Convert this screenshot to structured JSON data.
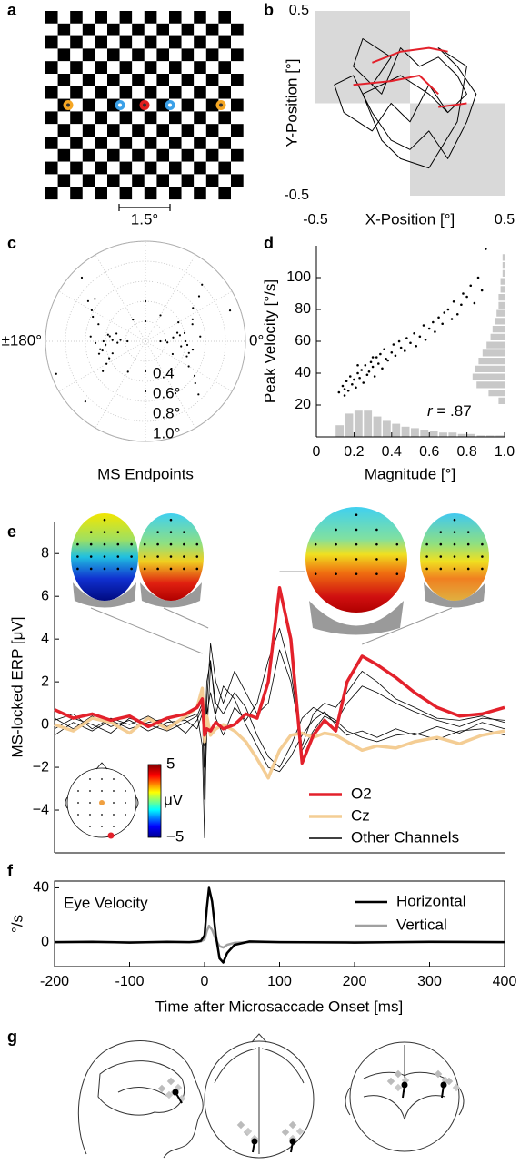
{
  "panel_a": {
    "label": "a",
    "scale_label": "1.5°"
  },
  "chart_data": [
    {
      "type": "line",
      "label": "b",
      "xlabel": "X-Position [°]",
      "ylabel": "Y-Position [°]",
      "xlim": [
        -0.5,
        0.5
      ],
      "ylim": [
        -0.5,
        0.5
      ],
      "xticks": [
        -0.5,
        0.5
      ],
      "yticks": [
        -0.5,
        0.5
      ],
      "frame": "none",
      "shaded_regions": [
        {
          "x": [
            -0.5,
            0
          ],
          "y": [
            0,
            0.5
          ]
        },
        {
          "x": [
            0,
            0.5
          ],
          "y": [
            -0.5,
            0
          ]
        }
      ],
      "shade_color": "#d9d9d9",
      "series": [
        {
          "color": "#000000",
          "x": [
            -0.2,
            -0.1,
            -0.25,
            -0.3,
            -0.15,
            -0.05,
            0.05,
            0.15,
            0.25,
            0.3,
            0.2,
            0.1,
            0.0,
            -0.1,
            -0.2,
            -0.35,
            -0.4,
            -0.3,
            -0.2,
            -0.1,
            0.0,
            0.1,
            0.2,
            0.3,
            0.35,
            0.25,
            0.15,
            0.3,
            0.25,
            0.1,
            -0.05,
            -0.15,
            -0.25,
            -0.05,
            0.1,
            0.2
          ],
          "values": [
            0.1,
            0.25,
            0.35,
            0.2,
            0.05,
            0.3,
            0.2,
            0.25,
            0.15,
            0.05,
            -0.05,
            0.1,
            -0.1,
            0.0,
            -0.15,
            -0.05,
            0.1,
            0.15,
            -0.05,
            -0.2,
            -0.25,
            -0.15,
            -0.3,
            -0.1,
            0.05,
            0.2,
            0.3,
            0.2,
            -0.1,
            -0.35,
            -0.3,
            -0.2,
            0.05,
            0.15,
            0.05,
            -0.05
          ]
        },
        {
          "color": "#e3212b",
          "x": [
            -0.2,
            -0.05,
            0.1,
            0.2
          ],
          "values": [
            0.22,
            0.28,
            0.3,
            0.28
          ]
        },
        {
          "color": "#e3212b",
          "x": [
            -0.3,
            -0.1,
            0.05,
            0.15
          ],
          "values": [
            0.1,
            0.12,
            0.15,
            0.05
          ]
        },
        {
          "color": "#e3212b",
          "x": [
            0.15,
            0.3
          ],
          "values": [
            -0.02,
            0.0
          ]
        }
      ]
    },
    {
      "type": "polar_scatter",
      "label": "c",
      "xlabel": "MS Endpoints",
      "color": "#000000",
      "rlim": [
        0,
        1
      ],
      "rgrid": [
        0.2,
        0.4,
        0.6,
        0.8,
        1.0
      ],
      "theta_grid": [
        0,
        30,
        60,
        90,
        120,
        150,
        180,
        210,
        240,
        270,
        300,
        330
      ],
      "theta_labels": [
        {
          "value": 180,
          "label": "±180°"
        },
        {
          "value": 0,
          "label": "0°"
        }
      ],
      "rticks": [
        {
          "value": 0.4,
          "label": "0.4"
        },
        {
          "value": 0.6,
          "label": "0.6°"
        },
        {
          "value": 0.8,
          "label": "0.8°"
        },
        {
          "value": 1.0,
          "label": "1.0°"
        }
      ],
      "theta": [
        0,
        10,
        -15,
        20,
        -25,
        5,
        -5,
        30,
        -35,
        15,
        -10,
        25,
        40,
        -40,
        8,
        -20,
        12,
        -8,
        35,
        -30,
        180,
        170,
        -170,
        160,
        -160,
        175,
        -175,
        150,
        -150,
        165,
        -165,
        145,
        -145,
        172,
        -168,
        155,
        -155,
        178,
        -178,
        140,
        60,
        90,
        -90,
        120,
        -60,
        -120,
        45,
        -45,
        135,
        -135,
        2,
        -3,
        177,
        -177,
        20,
        -160,
        90,
        -90,
        0,
        180
      ],
      "r": [
        0.4,
        0.35,
        0.45,
        0.5,
        0.3,
        0.55,
        0.42,
        0.38,
        0.6,
        0.33,
        0.48,
        0.52,
        0.7,
        0.65,
        0.28,
        0.44,
        0.4,
        0.36,
        0.58,
        0.5,
        0.42,
        0.38,
        0.46,
        0.5,
        0.35,
        0.55,
        0.4,
        0.62,
        0.45,
        0.3,
        0.48,
        0.7,
        0.52,
        0.36,
        0.44,
        0.58,
        0.4,
        0.33,
        0.5,
        0.66,
        0.3,
        0.4,
        0.5,
        0.25,
        0.6,
        0.35,
        0.8,
        0.75,
        0.9,
        0.85,
        0.2,
        0.22,
        0.25,
        0.28,
        0.9,
        0.95,
        0.2,
        0.3,
        0.15,
        0.18
      ]
    },
    {
      "type": "scatter",
      "label": "d",
      "xlabel": "Magnitude [°]",
      "ylabel": "Peak Velocity [°/s]",
      "color": "#000000",
      "xlim": [
        0,
        1
      ],
      "ylim": [
        0,
        120
      ],
      "xticks": [
        0,
        0.2,
        0.4,
        0.6,
        0.8,
        {
          "value": 1,
          "label": "1.0"
        }
      ],
      "yticks": [
        20,
        40,
        60,
        80,
        100
      ],
      "frame": "left-bottom",
      "annotation_symbol": "r",
      "annotation_text": " = .87",
      "x": [
        0.12,
        0.14,
        0.15,
        0.16,
        0.17,
        0.18,
        0.19,
        0.2,
        0.21,
        0.22,
        0.23,
        0.24,
        0.25,
        0.26,
        0.27,
        0.28,
        0.29,
        0.3,
        0.31,
        0.32,
        0.33,
        0.34,
        0.35,
        0.36,
        0.37,
        0.38,
        0.4,
        0.41,
        0.42,
        0.44,
        0.45,
        0.47,
        0.48,
        0.5,
        0.52,
        0.53,
        0.55,
        0.57,
        0.58,
        0.6,
        0.62,
        0.63,
        0.65,
        0.67,
        0.68,
        0.7,
        0.72,
        0.73,
        0.75,
        0.77,
        0.78,
        0.8,
        0.82,
        0.84,
        0.86,
        0.88,
        0.9,
        0.15,
        0.22,
        0.3
      ],
      "values": [
        28,
        32,
        30,
        35,
        29,
        38,
        33,
        36,
        31,
        40,
        37,
        42,
        34,
        45,
        39,
        41,
        47,
        44,
        38,
        50,
        46,
        52,
        43,
        55,
        49,
        48,
        53,
        58,
        51,
        60,
        56,
        54,
        62,
        59,
        65,
        57,
        63,
        70,
        61,
        68,
        72,
        66,
        75,
        71,
        78,
        80,
        74,
        85,
        77,
        83,
        90,
        88,
        95,
        84,
        100,
        92,
        118,
        26,
        45,
        50
      ],
      "hist_color": "#c8c8c8",
      "x_hist": {
        "bins": [
          0.1,
          0.15,
          0.2,
          0.25,
          0.3,
          0.35,
          0.4,
          0.45,
          0.5,
          0.55,
          0.6,
          0.65,
          0.7,
          0.75,
          0.8,
          0.85,
          0.9,
          0.95,
          1.0
        ],
        "counts": [
          8,
          16,
          18,
          18,
          14,
          11,
          9,
          7,
          6,
          5,
          4,
          3,
          3,
          2,
          2,
          1,
          1,
          1
        ]
      },
      "y_hist": {
        "bins": [
          20,
          25,
          30,
          35,
          40,
          45,
          50,
          55,
          60,
          65,
          70,
          75,
          80,
          85,
          90,
          95,
          100,
          105,
          110,
          115
        ],
        "counts": [
          3,
          8,
          14,
          16,
          15,
          13,
          11,
          9,
          7,
          6,
          5,
          4,
          3,
          3,
          2,
          2,
          1,
          1,
          1
        ]
      }
    },
    {
      "type": "line",
      "label": "e",
      "ylabel": "MS-locked ERP [μV]",
      "xlim": [
        -200,
        400
      ],
      "ylim": [
        -6,
        9.5
      ],
      "frame": "left-bottom",
      "yticks": [
        {
          "value": -4,
          "label": "−4"
        },
        {
          "value": -2,
          "label": "−2"
        },
        0,
        2,
        4,
        6,
        8
      ],
      "x": [
        -200,
        -175,
        -150,
        -125,
        -100,
        -75,
        -50,
        -25,
        -10,
        -3,
        0,
        3,
        8,
        15,
        25,
        40,
        55,
        70,
        85,
        100,
        115,
        130,
        145,
        160,
        175,
        190,
        210,
        230,
        255,
        280,
        310,
        340,
        370,
        400
      ],
      "series": [
        {
          "name": "O2",
          "color": "#e3212b",
          "values": [
            0.7,
            0.3,
            0.5,
            0.2,
            0.4,
            -0.1,
            0.3,
            0.5,
            0.8,
            1.2,
            -0.5,
            -0.2,
            -0.3,
            0.1,
            -0.2,
            0.0,
            0.5,
            0.3,
            2.0,
            6.4,
            4.0,
            -1.8,
            -0.5,
            0.2,
            -0.3,
            2.0,
            3.2,
            2.8,
            2.2,
            1.5,
            0.8,
            0.4,
            0.5,
            0.8
          ]
        },
        {
          "name": "Cz",
          "color": "#f4cd94",
          "values": [
            0,
            -0.3,
            0.3,
            0.1,
            -0.4,
            0.3,
            -0.2,
            0.4,
            0.8,
            1.7,
            -0.8,
            0.4,
            -0.5,
            -0.2,
            0.0,
            -0.3,
            -0.8,
            -1.6,
            -2.5,
            -1.2,
            -0.5,
            -0.4,
            -0.6,
            -0.4,
            -0.5,
            -0.8,
            -1.2,
            -1.0,
            -1.1,
            -0.8,
            -0.6,
            -0.9,
            -0.5,
            -0.3
          ]
        },
        {
          "name": "Other Channels",
          "color": "#000000",
          "values": [
            [
              0.2,
              0.5,
              -0.2,
              0.3,
              0,
              0.4,
              -0.1,
              0.3,
              0.5,
              -1.0,
              -5.3,
              1.0,
              3.8,
              2.0,
              1.0,
              2.5,
              1.5,
              0.5,
              1.0,
              3.5,
              2.0,
              -1.0,
              0.5,
              1.0,
              0.8,
              1.5,
              2.5,
              2.0,
              1.2,
              0.8,
              0.3,
              0.2,
              0.4,
              0.1
            ],
            [
              -0.5,
              0.1,
              -0.3,
              0.2,
              -0.2,
              0.1,
              0.3,
              -0.4,
              0.2,
              0.8,
              -3.5,
              -0.5,
              2.8,
              1.0,
              0.5,
              1.5,
              0.8,
              -0.5,
              -1.5,
              -2.0,
              -1.0,
              0.3,
              0.8,
              0.5,
              0.2,
              -0.3,
              -0.6,
              -0.8,
              -0.5,
              -0.4,
              -0.7,
              -0.3,
              -0.2,
              -0.5
            ],
            [
              0.3,
              -0.2,
              0.4,
              -0.1,
              0.2,
              -0.3,
              0.1,
              0.2,
              -0.2,
              0.5,
              -2.0,
              0.5,
              1.5,
              0.3,
              -0.5,
              0.8,
              0.2,
              1.0,
              3.0,
              4.5,
              2.5,
              -1.2,
              -0.3,
              0.4,
              0.1,
              1.0,
              1.8,
              1.5,
              1.0,
              0.6,
              0.2,
              -0.1,
              0.3,
              0.2
            ],
            [
              -0.2,
              0.3,
              0.0,
              -0.4,
              0.3,
              0.0,
              -0.3,
              0.1,
              0.4,
              1.0,
              -1.0,
              2.0,
              3.0,
              0.5,
              1.8,
              1.2,
              0.0,
              -1.0,
              -2.0,
              -2.2,
              -1.5,
              -0.5,
              0.2,
              0.6,
              0.0,
              -0.5,
              -0.3,
              -0.6,
              -0.2,
              -0.5,
              -0.1,
              -0.4,
              0.1,
              -0.2
            ]
          ]
        }
      ],
      "topomap_times": [
        -3,
        5,
        100,
        210
      ],
      "colorbar": {
        "lim": [
          -5,
          5
        ],
        "ticks": [
          5,
          {
            "value": -5,
            "label": "−5"
          }
        ],
        "unit": "μV"
      }
    },
    {
      "type": "line",
      "label": "f",
      "ylabel": "°/s",
      "xlabel": "Time after Microsaccade Onset [ms]",
      "annotation": "Eye Velocity",
      "xlim": [
        -200,
        400
      ],
      "ylim": [
        -18,
        45
      ],
      "xticks": [
        -200,
        -100,
        0,
        100,
        200,
        300,
        400
      ],
      "yticks": [
        0,
        40
      ],
      "frame": "box",
      "x": [
        -200,
        -150,
        -100,
        -50,
        -20,
        -10,
        -5,
        0,
        3,
        6,
        10,
        15,
        20,
        25,
        30,
        40,
        60,
        100,
        200,
        300,
        400
      ],
      "series": [
        {
          "name": "Horizontal",
          "color": "#000000",
          "values": [
            0,
            0.3,
            -0.3,
            0.2,
            0,
            0.5,
            1,
            5,
            25,
            40,
            30,
            5,
            -12,
            -15,
            -8,
            -2,
            0.5,
            0,
            -0.3,
            0.3,
            0
          ]
        },
        {
          "name": "Vertical",
          "color": "#a0a0a0",
          "values": [
            0,
            0,
            0,
            0,
            0,
            0,
            0.5,
            2,
            8,
            12,
            9,
            2,
            -3,
            -4,
            -2,
            -0.5,
            0,
            0,
            0,
            0,
            0
          ]
        }
      ]
    }
  ],
  "panel_g": {
    "label": "g"
  }
}
